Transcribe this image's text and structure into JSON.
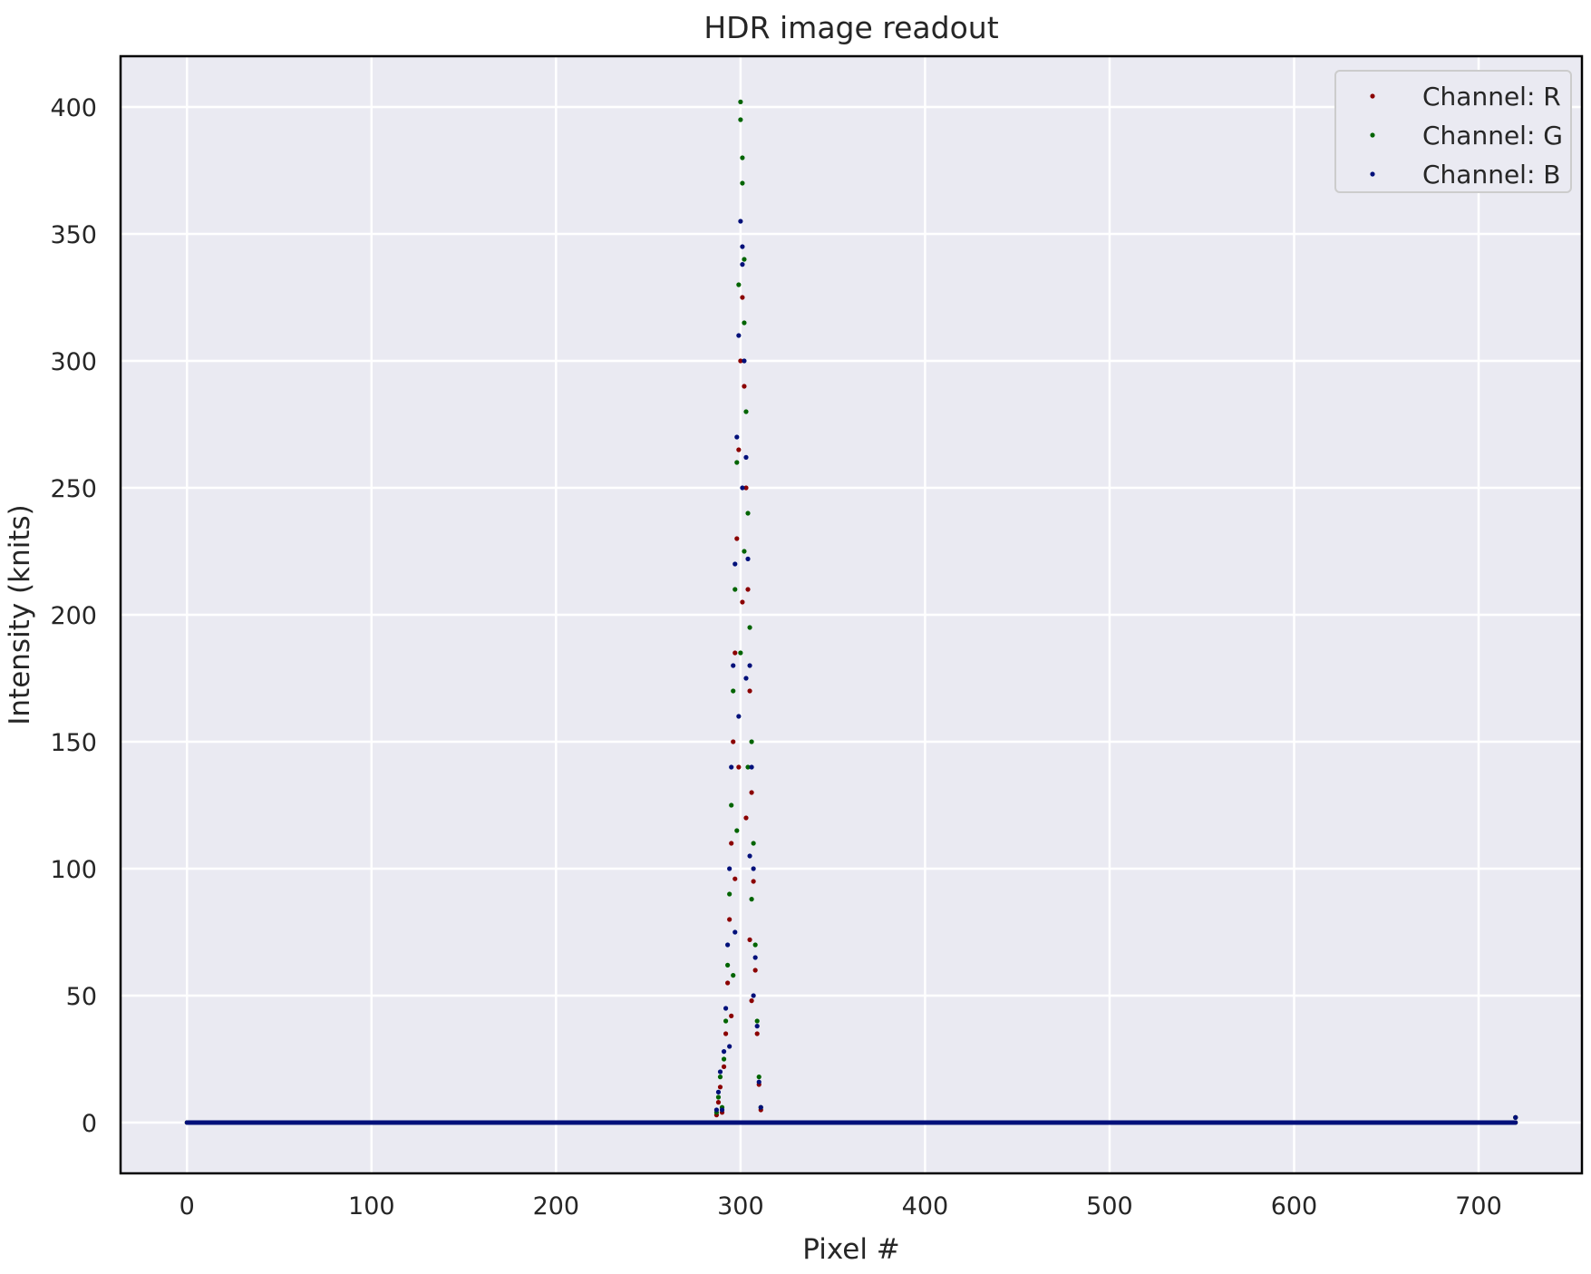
{
  "chart_data": {
    "type": "scatter",
    "title": "HDR image readout",
    "xlabel": "Pixel #",
    "ylabel": "Intensity (knits)",
    "xlim": [
      -36,
      756
    ],
    "ylim": [
      -20,
      420
    ],
    "xticks": [
      0,
      100,
      200,
      300,
      400,
      500,
      600,
      700
    ],
    "yticks": [
      0,
      50,
      100,
      150,
      200,
      250,
      300,
      350,
      400
    ],
    "grid": true,
    "legend_position": "top-right",
    "background_color": "#eaeaf2",
    "series": [
      {
        "name": "Channel: R",
        "color": "#8b0000",
        "baseline": {
          "x_range": [
            0,
            720
          ],
          "y": 0
        },
        "points": [
          [
            287,
            3
          ],
          [
            288,
            8
          ],
          [
            289,
            14
          ],
          [
            290,
            4
          ],
          [
            291,
            22
          ],
          [
            292,
            35
          ],
          [
            293,
            55
          ],
          [
            294,
            80
          ],
          [
            295,
            110
          ],
          [
            296,
            150
          ],
          [
            297,
            185
          ],
          [
            298,
            230
          ],
          [
            299,
            265
          ],
          [
            300,
            300
          ],
          [
            301,
            325
          ],
          [
            302,
            290
          ],
          [
            303,
            250
          ],
          [
            304,
            210
          ],
          [
            305,
            170
          ],
          [
            306,
            130
          ],
          [
            307,
            95
          ],
          [
            308,
            60
          ],
          [
            309,
            35
          ],
          [
            310,
            15
          ],
          [
            311,
            5
          ],
          [
            295,
            42
          ],
          [
            297,
            96
          ],
          [
            299,
            140
          ],
          [
            301,
            205
          ],
          [
            303,
            120
          ],
          [
            305,
            72
          ],
          [
            306,
            48
          ],
          [
            720,
            2
          ]
        ]
      },
      {
        "name": "Channel: G",
        "color": "#006400",
        "baseline": {
          "x_range": [
            0,
            720
          ],
          "y": 0
        },
        "points": [
          [
            287,
            4
          ],
          [
            288,
            10
          ],
          [
            289,
            18
          ],
          [
            290,
            6
          ],
          [
            291,
            25
          ],
          [
            292,
            40
          ],
          [
            293,
            62
          ],
          [
            294,
            90
          ],
          [
            295,
            125
          ],
          [
            296,
            170
          ],
          [
            297,
            210
          ],
          [
            298,
            260
          ],
          [
            299,
            330
          ],
          [
            300,
            402
          ],
          [
            300,
            395
          ],
          [
            301,
            380
          ],
          [
            301,
            370
          ],
          [
            302,
            340
          ],
          [
            302,
            315
          ],
          [
            303,
            280
          ],
          [
            304,
            240
          ],
          [
            305,
            195
          ],
          [
            306,
            150
          ],
          [
            307,
            110
          ],
          [
            308,
            70
          ],
          [
            309,
            40
          ],
          [
            310,
            18
          ],
          [
            311,
            6
          ],
          [
            296,
            58
          ],
          [
            298,
            115
          ],
          [
            300,
            185
          ],
          [
            302,
            225
          ],
          [
            304,
            140
          ],
          [
            306,
            88
          ],
          [
            720,
            2
          ]
        ]
      },
      {
        "name": "Channel: B",
        "color": "#00107a",
        "baseline": {
          "x_range": [
            0,
            720
          ],
          "y": 0
        },
        "points": [
          [
            287,
            5
          ],
          [
            288,
            12
          ],
          [
            289,
            20
          ],
          [
            290,
            5
          ],
          [
            291,
            28
          ],
          [
            292,
            45
          ],
          [
            293,
            70
          ],
          [
            294,
            100
          ],
          [
            295,
            140
          ],
          [
            296,
            180
          ],
          [
            297,
            220
          ],
          [
            298,
            270
          ],
          [
            299,
            310
          ],
          [
            300,
            355
          ],
          [
            301,
            345
          ],
          [
            301,
            338
          ],
          [
            302,
            300
          ],
          [
            303,
            262
          ],
          [
            304,
            222
          ],
          [
            305,
            180
          ],
          [
            306,
            140
          ],
          [
            307,
            100
          ],
          [
            308,
            65
          ],
          [
            309,
            38
          ],
          [
            310,
            16
          ],
          [
            311,
            6
          ],
          [
            294,
            30
          ],
          [
            297,
            75
          ],
          [
            299,
            160
          ],
          [
            301,
            250
          ],
          [
            303,
            175
          ],
          [
            305,
            105
          ],
          [
            307,
            50
          ],
          [
            720,
            2
          ]
        ]
      }
    ]
  }
}
